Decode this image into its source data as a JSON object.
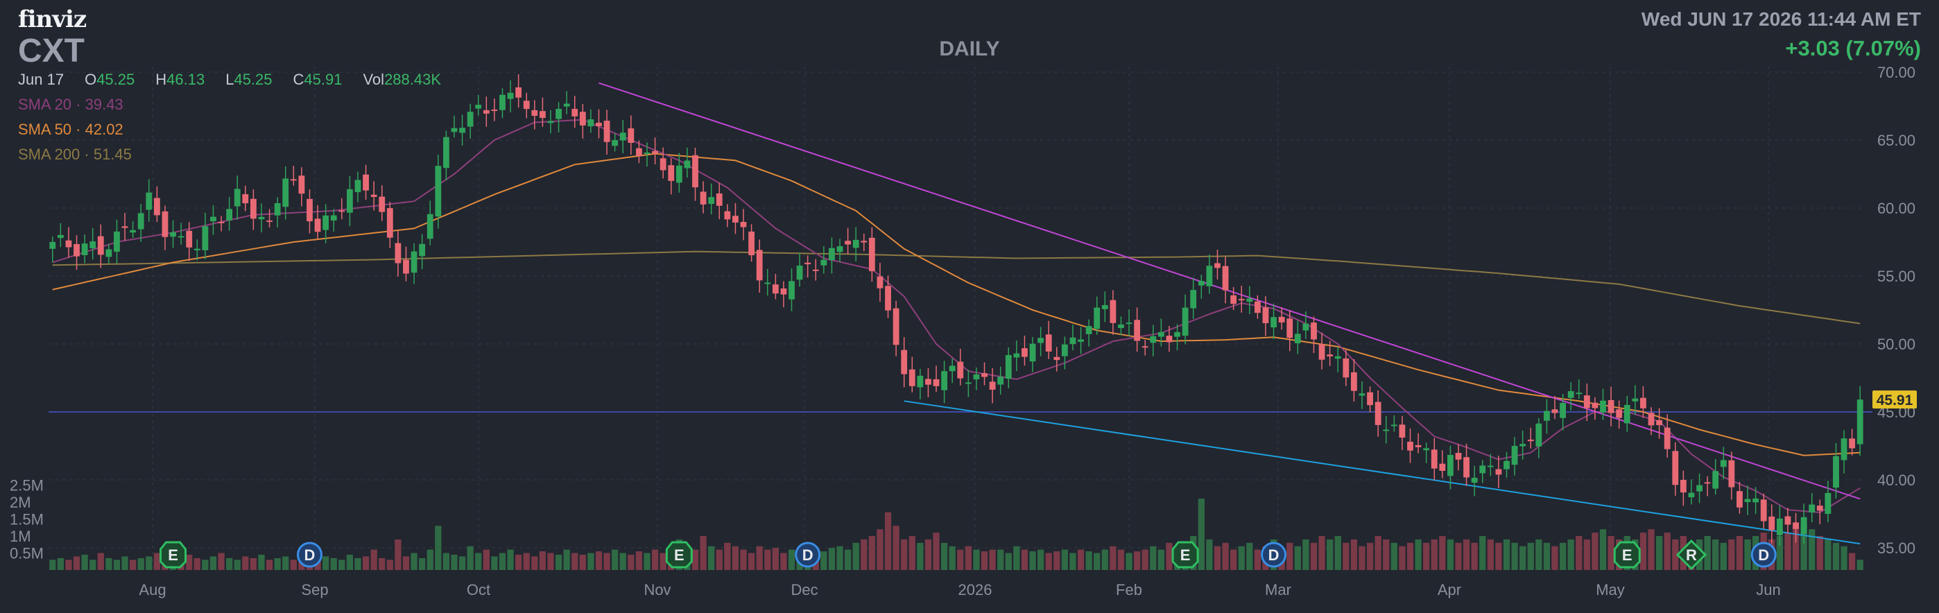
{
  "header": {
    "logo": "finviz",
    "ticker": "CXT",
    "period": "DAILY",
    "datetime": "Wed JUN 17 2026 11:44 AM ET",
    "change": "+3.03 (7.07%)"
  },
  "quote": {
    "date": "Jun 17",
    "open_label": "O",
    "open": "45.25",
    "high_label": "H",
    "high": "46.13",
    "low_label": "L",
    "low": "45.25",
    "close_label": "C",
    "close": "45.91",
    "vol_label": "Vol",
    "vol": "288.43K"
  },
  "indicators": [
    {
      "label": "SMA 20",
      "value": "39.43",
      "color": "#8e3f7c"
    },
    {
      "label": "SMA 50",
      "value": "42.02",
      "color": "#e08a3c"
    },
    {
      "label": "SMA 200",
      "value": "51.45",
      "color": "#8c7a45"
    }
  ],
  "colors": {
    "up": "#2fa35a",
    "down": "#e86a75",
    "vol_up": "#2f6a45",
    "vol_down": "#7a3a48",
    "trend_upper": "#c046d6",
    "trend_lower": "#1ea1e0",
    "price_line": "#3e4aa8",
    "last_price_bg": "#e6c229",
    "grid": "#343946"
  },
  "chart_data": {
    "type": "candlestick",
    "x_ticks": [
      "Aug",
      "Sep",
      "Oct",
      "Nov",
      "Dec",
      "2026",
      "Feb",
      "Mar",
      "Apr",
      "May",
      "Jun"
    ],
    "y_ticks": [
      "70.00",
      "65.00",
      "60.00",
      "55.00",
      "50.00",
      "45.00",
      "40.00",
      "35.00"
    ],
    "ylim": [
      33.5,
      70.5
    ],
    "volume_ticks": [
      "2.5M",
      "2M",
      "1.5M",
      "1M",
      "0.5M"
    ],
    "last_price": "45.91",
    "trading_days": 226,
    "events": [
      {
        "day": 15,
        "label": "E"
      },
      {
        "day": 32,
        "label": "D"
      },
      {
        "day": 78,
        "label": "E"
      },
      {
        "day": 94,
        "label": "D"
      },
      {
        "day": 141,
        "label": "E"
      },
      {
        "day": 152,
        "label": "D"
      },
      {
        "day": 196,
        "label": "E"
      },
      {
        "day": 204,
        "label": "R"
      },
      {
        "day": 213,
        "label": "D"
      }
    ],
    "close_path": [
      [
        0,
        57.5
      ],
      [
        3,
        56.5
      ],
      [
        6,
        57
      ],
      [
        9,
        58.8
      ],
      [
        12,
        60.5
      ],
      [
        14,
        58
      ],
      [
        16,
        57
      ],
      [
        18,
        57.5
      ],
      [
        20,
        59.5
      ],
      [
        23,
        61
      ],
      [
        25,
        59.5
      ],
      [
        27,
        58
      ],
      [
        29,
        62.5
      ],
      [
        31,
        61
      ],
      [
        33,
        59
      ],
      [
        35,
        59.5
      ],
      [
        37,
        61
      ],
      [
        40,
        61
      ],
      [
        42,
        57.5
      ],
      [
        44,
        56
      ],
      [
        46,
        57.5
      ],
      [
        48,
        63
      ],
      [
        50,
        65.5
      ],
      [
        53,
        67
      ],
      [
        55,
        68
      ],
      [
        58,
        69
      ],
      [
        60,
        66
      ],
      [
        62,
        66.5
      ],
      [
        65,
        67
      ],
      [
        67,
        66.5
      ],
      [
        70,
        65.5
      ],
      [
        73,
        64
      ],
      [
        75,
        63
      ],
      [
        77,
        62.5
      ],
      [
        79,
        63.5
      ],
      [
        80,
        62.5
      ],
      [
        81,
        61
      ],
      [
        84,
        59.5
      ],
      [
        86,
        57.5
      ],
      [
        88,
        55
      ],
      [
        90,
        53.5
      ],
      [
        92,
        55.5
      ],
      [
        95,
        56
      ],
      [
        97,
        56
      ],
      [
        99,
        57.5
      ],
      [
        101,
        57
      ],
      [
        103,
        55
      ],
      [
        105,
        50
      ],
      [
        107,
        47
      ],
      [
        109,
        46.5
      ],
      [
        111,
        47.5
      ],
      [
        114,
        48
      ],
      [
        117,
        47.5
      ],
      [
        119,
        48.5
      ],
      [
        122,
        49.5
      ],
      [
        125,
        49.5
      ],
      [
        127,
        50.5
      ],
      [
        129,
        52
      ],
      [
        131,
        52.5
      ],
      [
        133,
        51
      ],
      [
        135,
        50
      ],
      [
        137,
        50.5
      ],
      [
        139,
        51
      ],
      [
        141,
        52.5
      ],
      [
        143,
        55
      ],
      [
        144,
        55.5
      ],
      [
        146,
        53.5
      ],
      [
        148,
        53
      ],
      [
        150,
        53
      ],
      [
        152,
        52
      ],
      [
        154,
        51
      ],
      [
        156,
        50.5
      ],
      [
        158,
        49
      ],
      [
        160,
        48.5
      ],
      [
        162,
        47.5
      ],
      [
        164,
        45.5
      ],
      [
        166,
        44
      ],
      [
        168,
        42.5
      ],
      [
        170,
        42
      ],
      [
        172,
        41
      ],
      [
        174,
        42
      ],
      [
        176,
        41
      ],
      [
        178,
        40.5
      ],
      [
        180,
        40.5
      ],
      [
        182,
        41.5
      ],
      [
        184,
        43.5
      ],
      [
        186,
        45
      ],
      [
        188,
        46.5
      ],
      [
        190,
        46
      ],
      [
        192,
        45
      ],
      [
        194,
        44.5
      ],
      [
        196,
        45.5
      ],
      [
        198,
        46
      ],
      [
        200,
        44
      ],
      [
        202,
        40
      ],
      [
        204,
        38
      ],
      [
        206,
        40
      ],
      [
        208,
        41
      ],
      [
        210,
        39
      ],
      [
        212,
        38.5
      ],
      [
        214,
        36.5
      ],
      [
        216,
        36
      ],
      [
        218,
        37
      ],
      [
        220,
        38
      ],
      [
        221,
        40
      ],
      [
        222,
        42
      ],
      [
        223,
        43
      ],
      [
        224,
        43
      ],
      [
        225,
        45.9
      ]
    ],
    "sma20_path": [
      [
        0,
        56
      ],
      [
        8,
        57.5
      ],
      [
        15,
        58.2
      ],
      [
        25,
        59.5
      ],
      [
        35,
        59.8
      ],
      [
        45,
        60.5
      ],
      [
        50,
        62.5
      ],
      [
        55,
        65
      ],
      [
        60,
        66.3
      ],
      [
        66,
        66.5
      ],
      [
        72,
        65
      ],
      [
        78,
        63.5
      ],
      [
        84,
        61.5
      ],
      [
        90,
        58.5
      ],
      [
        96,
        56.3
      ],
      [
        102,
        55.5
      ],
      [
        106,
        53.5
      ],
      [
        110,
        50
      ],
      [
        114,
        48
      ],
      [
        120,
        47.4
      ],
      [
        126,
        48.6
      ],
      [
        132,
        50.2
      ],
      [
        138,
        50.8
      ],
      [
        144,
        52.2
      ],
      [
        148,
        53
      ],
      [
        152,
        52.6
      ],
      [
        156,
        51.5
      ],
      [
        160,
        50
      ],
      [
        164,
        47.5
      ],
      [
        168,
        45.3
      ],
      [
        172,
        43.2
      ],
      [
        176,
        42.4
      ],
      [
        180,
        41.5
      ],
      [
        184,
        42
      ],
      [
        188,
        43.8
      ],
      [
        192,
        45
      ],
      [
        196,
        45
      ],
      [
        200,
        44.3
      ],
      [
        204,
        41.9
      ],
      [
        208,
        40.2
      ],
      [
        212,
        39.2
      ],
      [
        216,
        37.8
      ],
      [
        220,
        37.6
      ],
      [
        225,
        39.4
      ]
    ],
    "sma50_path": [
      [
        0,
        54
      ],
      [
        15,
        56
      ],
      [
        30,
        57.5
      ],
      [
        45,
        58.5
      ],
      [
        55,
        61
      ],
      [
        65,
        63.2
      ],
      [
        75,
        64
      ],
      [
        85,
        63.5
      ],
      [
        92,
        62
      ],
      [
        100,
        59.8
      ],
      [
        106,
        57
      ],
      [
        114,
        54.5
      ],
      [
        122,
        52.5
      ],
      [
        130,
        51
      ],
      [
        138,
        50.2
      ],
      [
        146,
        50.3
      ],
      [
        152,
        50.5
      ],
      [
        160,
        49.8
      ],
      [
        170,
        48.1
      ],
      [
        180,
        46.6
      ],
      [
        190,
        45.8
      ],
      [
        198,
        45
      ],
      [
        205,
        43.7
      ],
      [
        212,
        42.6
      ],
      [
        218,
        41.8
      ],
      [
        225,
        42
      ]
    ],
    "sma200_path": [
      [
        0,
        55.8
      ],
      [
        20,
        56
      ],
      [
        40,
        56.2
      ],
      [
        60,
        56.5
      ],
      [
        80,
        56.8
      ],
      [
        100,
        56.6
      ],
      [
        120,
        56.3
      ],
      [
        140,
        56.4
      ],
      [
        150,
        56.5
      ],
      [
        160,
        56.1
      ],
      [
        180,
        55.2
      ],
      [
        195,
        54.4
      ],
      [
        210,
        52.8
      ],
      [
        225,
        51.5
      ]
    ],
    "volume_m": [
      0.3,
      0.35,
      0.3,
      0.4,
      0.45,
      0.3,
      0.5,
      0.35,
      0.3,
      0.4,
      0.3,
      0.35,
      0.4,
      0.5,
      0.35,
      0.4,
      0.3,
      0.45,
      0.35,
      0.3,
      0.4,
      0.5,
      0.35,
      0.3,
      0.4,
      0.35,
      0.45,
      0.3,
      0.35,
      0.4,
      0.3,
      0.35,
      0.5,
      0.3,
      0.4,
      0.35,
      0.3,
      0.45,
      0.35,
      0.4,
      0.6,
      0.35,
      0.3,
      0.9,
      0.4,
      0.5,
      0.35,
      0.6,
      1.3,
      0.5,
      0.45,
      0.4,
      0.7,
      0.5,
      0.6,
      0.4,
      0.5,
      0.6,
      0.45,
      0.5,
      0.4,
      0.55,
      0.5,
      0.45,
      0.6,
      0.5,
      0.45,
      0.5,
      0.55,
      0.5,
      0.6,
      0.5,
      0.45,
      0.55,
      0.5,
      0.6,
      0.5,
      0.55,
      0.9,
      0.7,
      0.6,
      1.0,
      0.7,
      0.6,
      0.8,
      0.7,
      0.6,
      0.5,
      0.7,
      0.6,
      0.65,
      0.5,
      0.6,
      0.55,
      0.6,
      0.5,
      0.55,
      0.65,
      0.7,
      0.6,
      0.8,
      0.9,
      1.0,
      1.2,
      1.7,
      1.3,
      0.9,
      1.0,
      0.8,
      0.9,
      1.1,
      0.8,
      0.7,
      0.6,
      0.7,
      0.6,
      0.55,
      0.6,
      0.6,
      0.5,
      0.7,
      0.6,
      0.55,
      0.6,
      0.5,
      0.55,
      0.6,
      0.5,
      0.6,
      0.55,
      0.5,
      0.6,
      0.7,
      0.6,
      0.5,
      0.55,
      0.6,
      0.7,
      0.6,
      0.8,
      0.6,
      0.7,
      1.0,
      2.1,
      0.9,
      0.7,
      0.8,
      0.6,
      0.7,
      0.8,
      0.6,
      0.7,
      0.9,
      0.6,
      0.8,
      0.7,
      0.9,
      0.8,
      1.0,
      0.9,
      1.0,
      0.8,
      0.9,
      0.7,
      0.8,
      1.0,
      0.9,
      0.8,
      0.7,
      0.8,
      0.9,
      0.8,
      0.9,
      1.0,
      0.9,
      0.8,
      0.9,
      0.8,
      1.0,
      0.9,
      0.8,
      0.9,
      0.8,
      0.7,
      0.8,
      0.9,
      0.8,
      0.7,
      0.8,
      0.9,
      1.0,
      0.9,
      1.1,
      1.2,
      1.0,
      0.9,
      1.0,
      0.9,
      1.1,
      1.2,
      1.0,
      1.1,
      0.9,
      1.0,
      0.8,
      0.9,
      1.0,
      0.9,
      0.8,
      0.9,
      1.0,
      0.9,
      1.0,
      1.1,
      0.9,
      1.0,
      1.1,
      1.3,
      1.4,
      1.2,
      1.0,
      0.9,
      0.8,
      0.7,
      0.5,
      0.3
    ]
  }
}
